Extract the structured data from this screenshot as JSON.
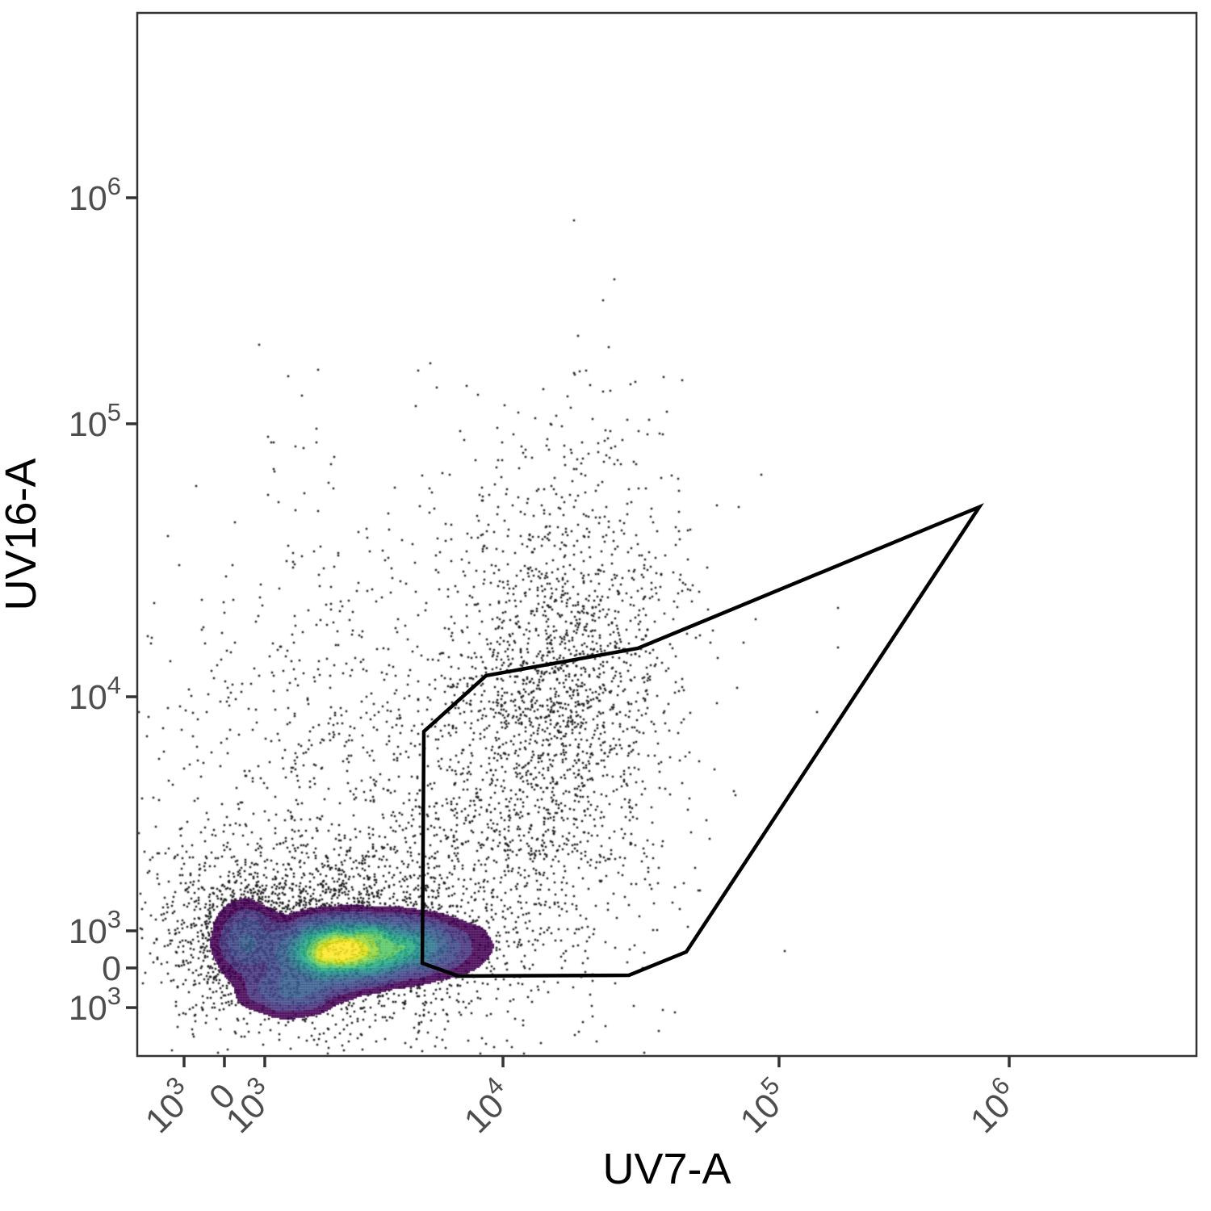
{
  "chart_data": {
    "type": "scatter",
    "subtype": "flow-cytometry-density-plot",
    "title": "",
    "xlabel": "UV7-A",
    "ylabel": "UV16-A",
    "grid": false,
    "legend": "none",
    "x_axis": {
      "label": "UV7-A",
      "scale": "biexponential",
      "ticks": [
        {
          "text": "10",
          "exp": "3",
          "pos": 0.0442
        },
        {
          "text": "0",
          "pos": 0.0823
        },
        {
          "text": "10",
          "exp": "3",
          "pos": 0.1204
        },
        {
          "text": "10",
          "exp": "4",
          "pos": 0.3453
        },
        {
          "text": "10",
          "exp": "5",
          "pos": 0.6059
        },
        {
          "text": "10",
          "exp": "6",
          "pos": 0.8232
        }
      ]
    },
    "y_axis": {
      "label": "UV16-A",
      "scale": "biexponential",
      "ticks": [
        {
          "text": "10",
          "exp": "6",
          "pos": 0.8228
        },
        {
          "text": "10",
          "exp": "5",
          "pos": 0.6061
        },
        {
          "text": "10",
          "exp": "4",
          "pos": 0.3444
        },
        {
          "text": "10",
          "exp": "3",
          "pos": 0.12
        },
        {
          "text": "0",
          "pos": 0.0844
        },
        {
          "text": "10",
          "exp": "3",
          "pos": 0.0464
        }
      ]
    },
    "gate_polygon": {
      "vertices": [
        [
          0.2706,
          0.3111
        ],
        [
          0.3293,
          0.3646
        ],
        [
          0.4726,
          0.3909
        ],
        [
          0.795,
          0.5263
        ],
        [
          0.5183,
          0.0998
        ],
        [
          0.4642,
          0.0774
        ],
        [
          0.3033,
          0.0766
        ],
        [
          0.2691,
          0.089
        ]
      ]
    },
    "density": {
      "components": [
        {
          "x": 0.1867,
          "y": 0.1006,
          "sx": 0.0298,
          "sy": 0.0165,
          "w": 1.0
        },
        {
          "x": 0.2363,
          "y": 0.1053,
          "sx": 0.042,
          "sy": 0.016,
          "w": 0.62
        },
        {
          "x": 0.1014,
          "y": 0.1122,
          "sx": 0.0168,
          "sy": 0.0201,
          "w": 0.26
        },
        {
          "x": 0.1433,
          "y": 0.0627,
          "sx": 0.025,
          "sy": 0.013,
          "w": 0.28
        }
      ],
      "levels": [
        0.03,
        0.07,
        0.12,
        0.19,
        0.27,
        0.36,
        0.46,
        0.565,
        0.67,
        0.775,
        0.875
      ],
      "noise_amplitude": 0.14,
      "noise_wavelength": 18
    },
    "scatter": {
      "clusters": [
        {
          "x": 0.1852,
          "y": 0.1153,
          "sx": 0.0854,
          "sy": 0.0449,
          "n": 2600,
          "tilt": 0
        },
        {
          "x": 0.3963,
          "y": 0.339,
          "sx": 0.0572,
          "sy": 0.1161,
          "n": 2000,
          "tilt": 0.15
        },
        {
          "x": 0.2134,
          "y": 0.2771,
          "sx": 0.122,
          "sy": 0.124,
          "n": 1000,
          "tilt": 0
        },
        {
          "x": 0.1029,
          "y": 0.1107,
          "sx": 0.0267,
          "sy": 0.031,
          "n": 550,
          "tilt": 0
        }
      ],
      "uniform_sprinkle": {
        "x0": 0.12,
        "x1": 0.52,
        "y0": 0.42,
        "y1": 0.66,
        "n": 45
      },
      "isolated_points": [
        [
          0.6616,
          0.4296
        ],
        [
          0.6616,
          0.3917
        ],
        [
          0.5632,
          0.2539
        ],
        [
          0.4398,
          0.637
        ],
        [
          0.4627,
          0.6099
        ],
        [
          0.4833,
          0.6099
        ],
        [
          0.4421,
          0.5999
        ],
        [
          0.4817,
          0.596
        ],
        [
          0.3087,
          0.5905
        ]
      ],
      "dot_size": 2.6,
      "seed": 42
    },
    "colors": {
      "dot": "#1f1f1f",
      "gate": "#000000",
      "panel_border": "#333333",
      "tick": "#333333",
      "tick_label": "#4d4d4d",
      "axis_title": "#000000",
      "background": "#ffffff",
      "viridis": [
        "#440154",
        "#46327e",
        "#3f4889",
        "#365c8d",
        "#2b748e",
        "#21918c",
        "#27ad81",
        "#58c765",
        "#95d840",
        "#dde318",
        "#fde725"
      ]
    }
  }
}
